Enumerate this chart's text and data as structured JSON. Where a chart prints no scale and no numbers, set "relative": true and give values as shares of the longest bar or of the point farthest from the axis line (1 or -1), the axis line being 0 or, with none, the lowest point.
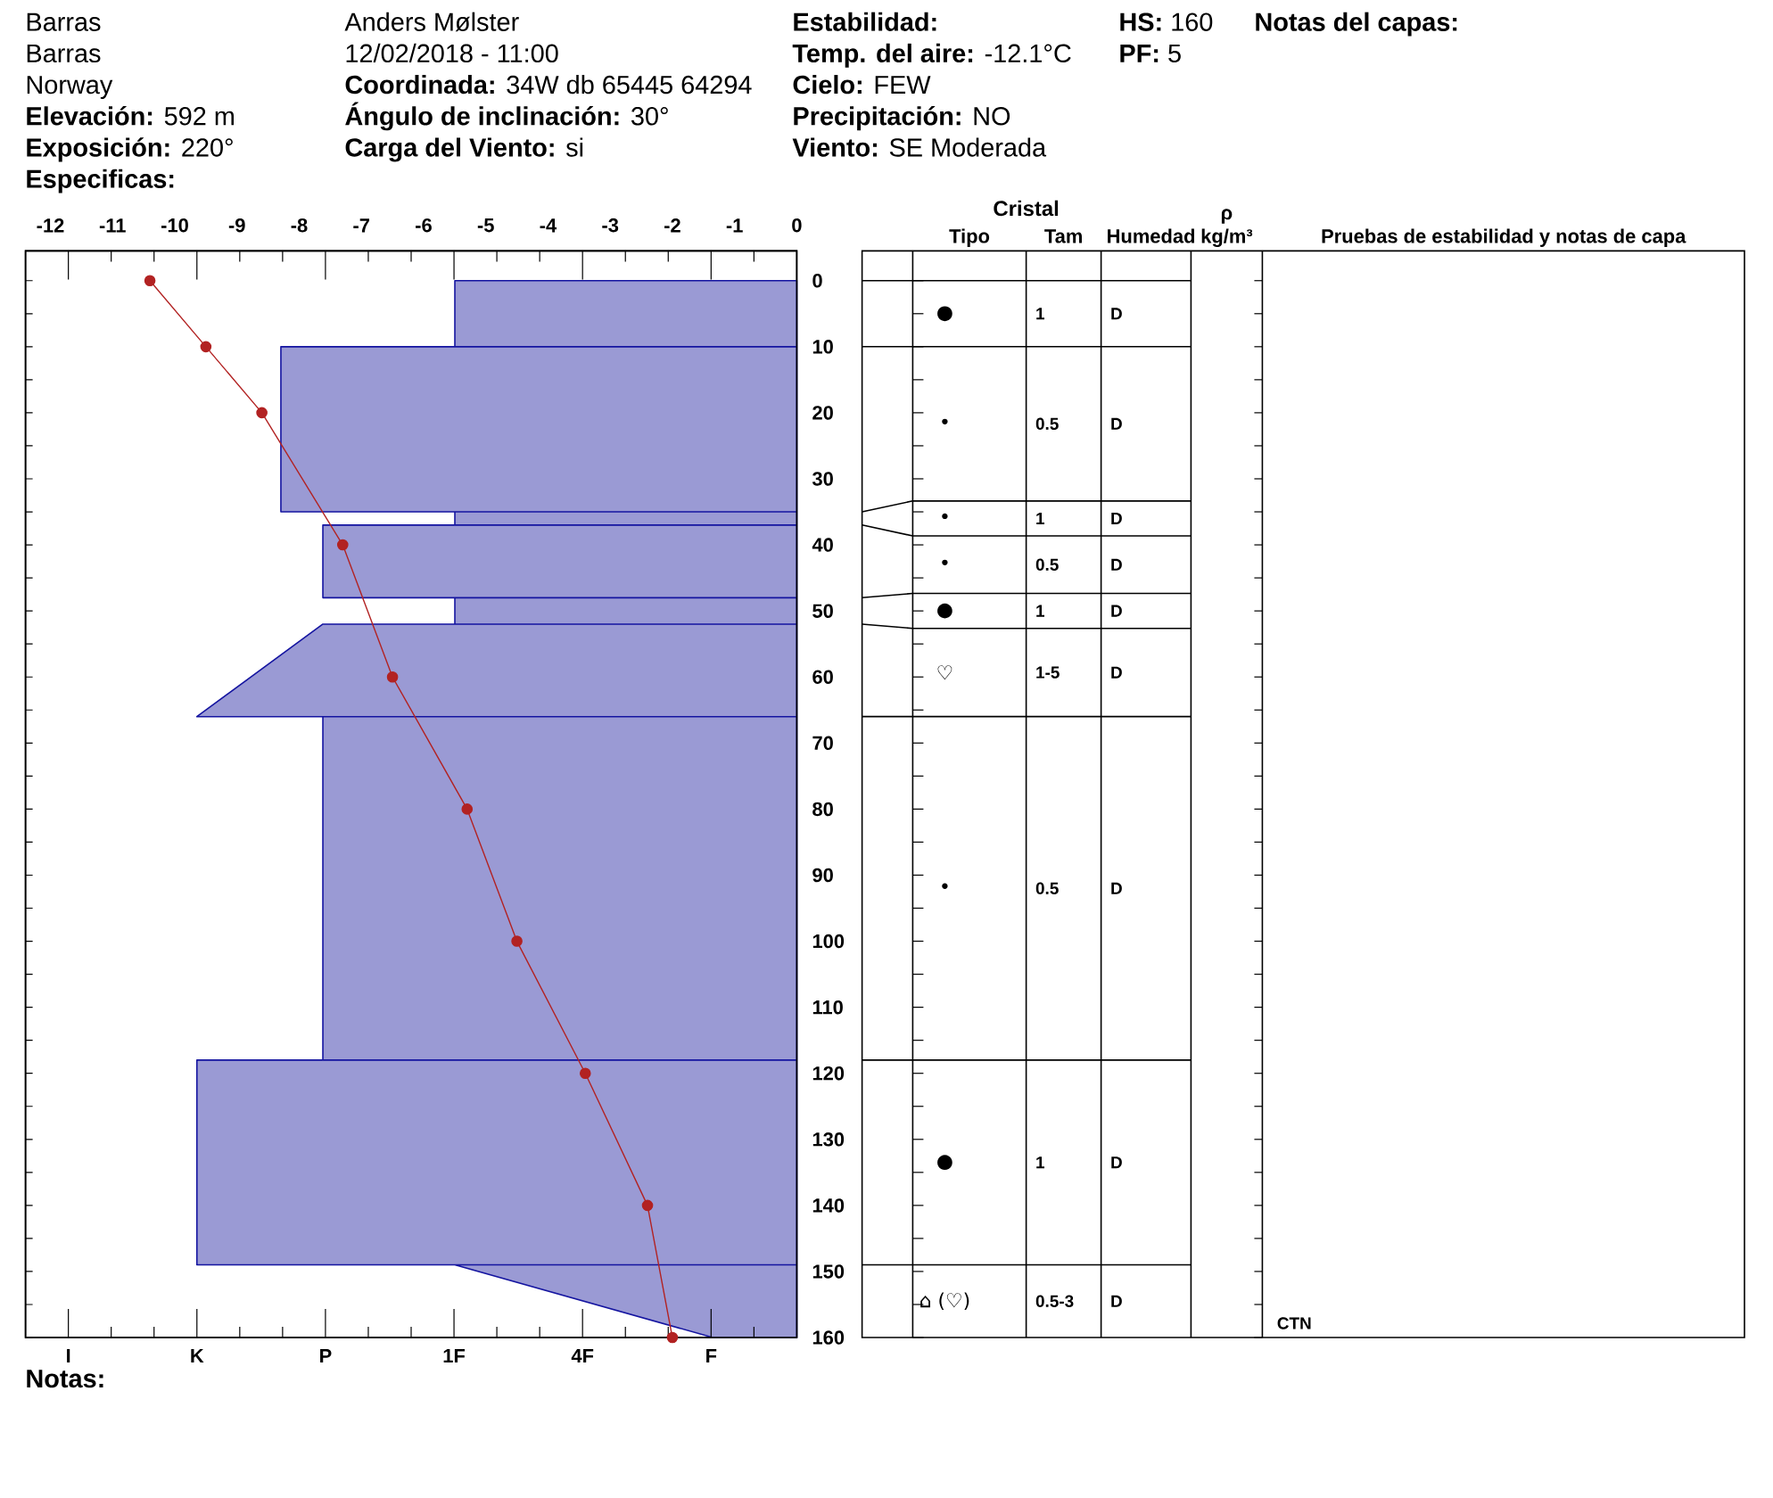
{
  "chart_data": [
    {
      "type": "area",
      "orientation": "horizontal",
      "relative": true,
      "ylim": [
        160,
        -4.5
      ],
      "yticks": [
        0,
        {
          "value": 5,
          "label": null
        },
        10,
        {
          "value": 15,
          "label": null
        },
        20,
        {
          "value": 25,
          "label": null
        },
        30,
        {
          "value": 35,
          "label": null
        },
        40,
        {
          "value": 45,
          "label": null
        },
        50,
        {
          "value": 55,
          "label": null
        },
        60,
        {
          "value": 65,
          "label": null
        },
        70,
        {
          "value": 75,
          "label": null
        },
        80,
        {
          "value": 85,
          "label": null
        },
        90,
        {
          "value": 95,
          "label": null
        },
        100,
        {
          "value": 105,
          "label": null
        },
        110,
        {
          "value": 115,
          "label": null
        },
        120,
        {
          "value": 125,
          "label": null
        },
        130,
        {
          "value": 135,
          "label": null
        },
        140,
        {
          "value": 145,
          "label": null
        },
        150,
        {
          "value": 155,
          "label": null
        },
        160
      ],
      "series": [
        {
          "color": "#9a9ad4",
          "x": [
            0,
            10,
            10,
            35,
            35,
            37,
            37,
            48,
            48,
            52,
            52,
            66,
            66,
            118,
            118,
            149,
            149,
            160
          ],
          "values": [
            -0.57,
            -0.57,
            -0.86,
            -0.86,
            -0.57,
            -0.57,
            -0.79,
            -0.79,
            -0.57,
            -0.57,
            -0.79,
            -1,
            -0.79,
            -0.79,
            -1,
            -1,
            -0.57,
            -0.14
          ]
        }
      ],
      "annotations": [
        "Barras",
        "Barras",
        "Norway",
        "**Elevación:** 592 m",
        "**Exposición:** 220°",
        "Especificas:",
        "Anders Mølster",
        "12/02/2018 - 11:00",
        "**Coordinada:** 34W db 65445 64294",
        "**Ángulo de inclinación:** 30°",
        "**Carga del Viento:** si",
        "Estabilidad:",
        "**Temp. del aire:** -12.1°C",
        "**Cielo:** FEW",
        "**Precipitación:** NO",
        "**Viento:** SE Moderada",
        "**HS:** 160",
        "**PF:** 5",
        "Notas del capas:",
        "Notas:",
        "I",
        "K",
        "P",
        "1F",
        "4F",
        "F"
      ]
    },
    {
      "type": "line",
      "orientation": "horizontal",
      "xlim": [
        -12.4,
        0
      ],
      "xticks": [
        -12,
        -11,
        -10,
        -9,
        -8,
        -7,
        -6,
        -5,
        -4,
        -3,
        -2,
        -1,
        0
      ],
      "ylim": [
        160,
        -4.5
      ],
      "tick_labels": "x",
      "series": [
        {
          "color": "#b22222",
          "marker": "circle",
          "x": [
            0,
            10,
            20,
            40,
            60,
            80,
            100,
            120,
            140,
            160
          ],
          "values": [
            -10.4,
            -9.5,
            -8.6,
            -7.3,
            -6.5,
            -5.3,
            -4.5,
            -3.4,
            -2.4,
            -2.0
          ]
        }
      ]
    },
    {
      "type": "other",
      "categories": [
        "Tipo",
        "Tam",
        "Humedad",
        "ρ kg/m³",
        "Pruebas de estabilidad y notas de capa"
      ],
      "annotations": [
        "Cristal",
        "●",
        "1",
        "D",
        "•",
        "0.5",
        "D",
        "•",
        "1",
        "D",
        "•",
        "0.5",
        "D",
        "●",
        "1",
        "D",
        "♡",
        "1-5",
        "D",
        "•",
        "0.5",
        "D",
        "●",
        "1",
        "D",
        "⌂ (♡)",
        "0.5-3",
        "D",
        "CTN"
      ]
    }
  ]
}
